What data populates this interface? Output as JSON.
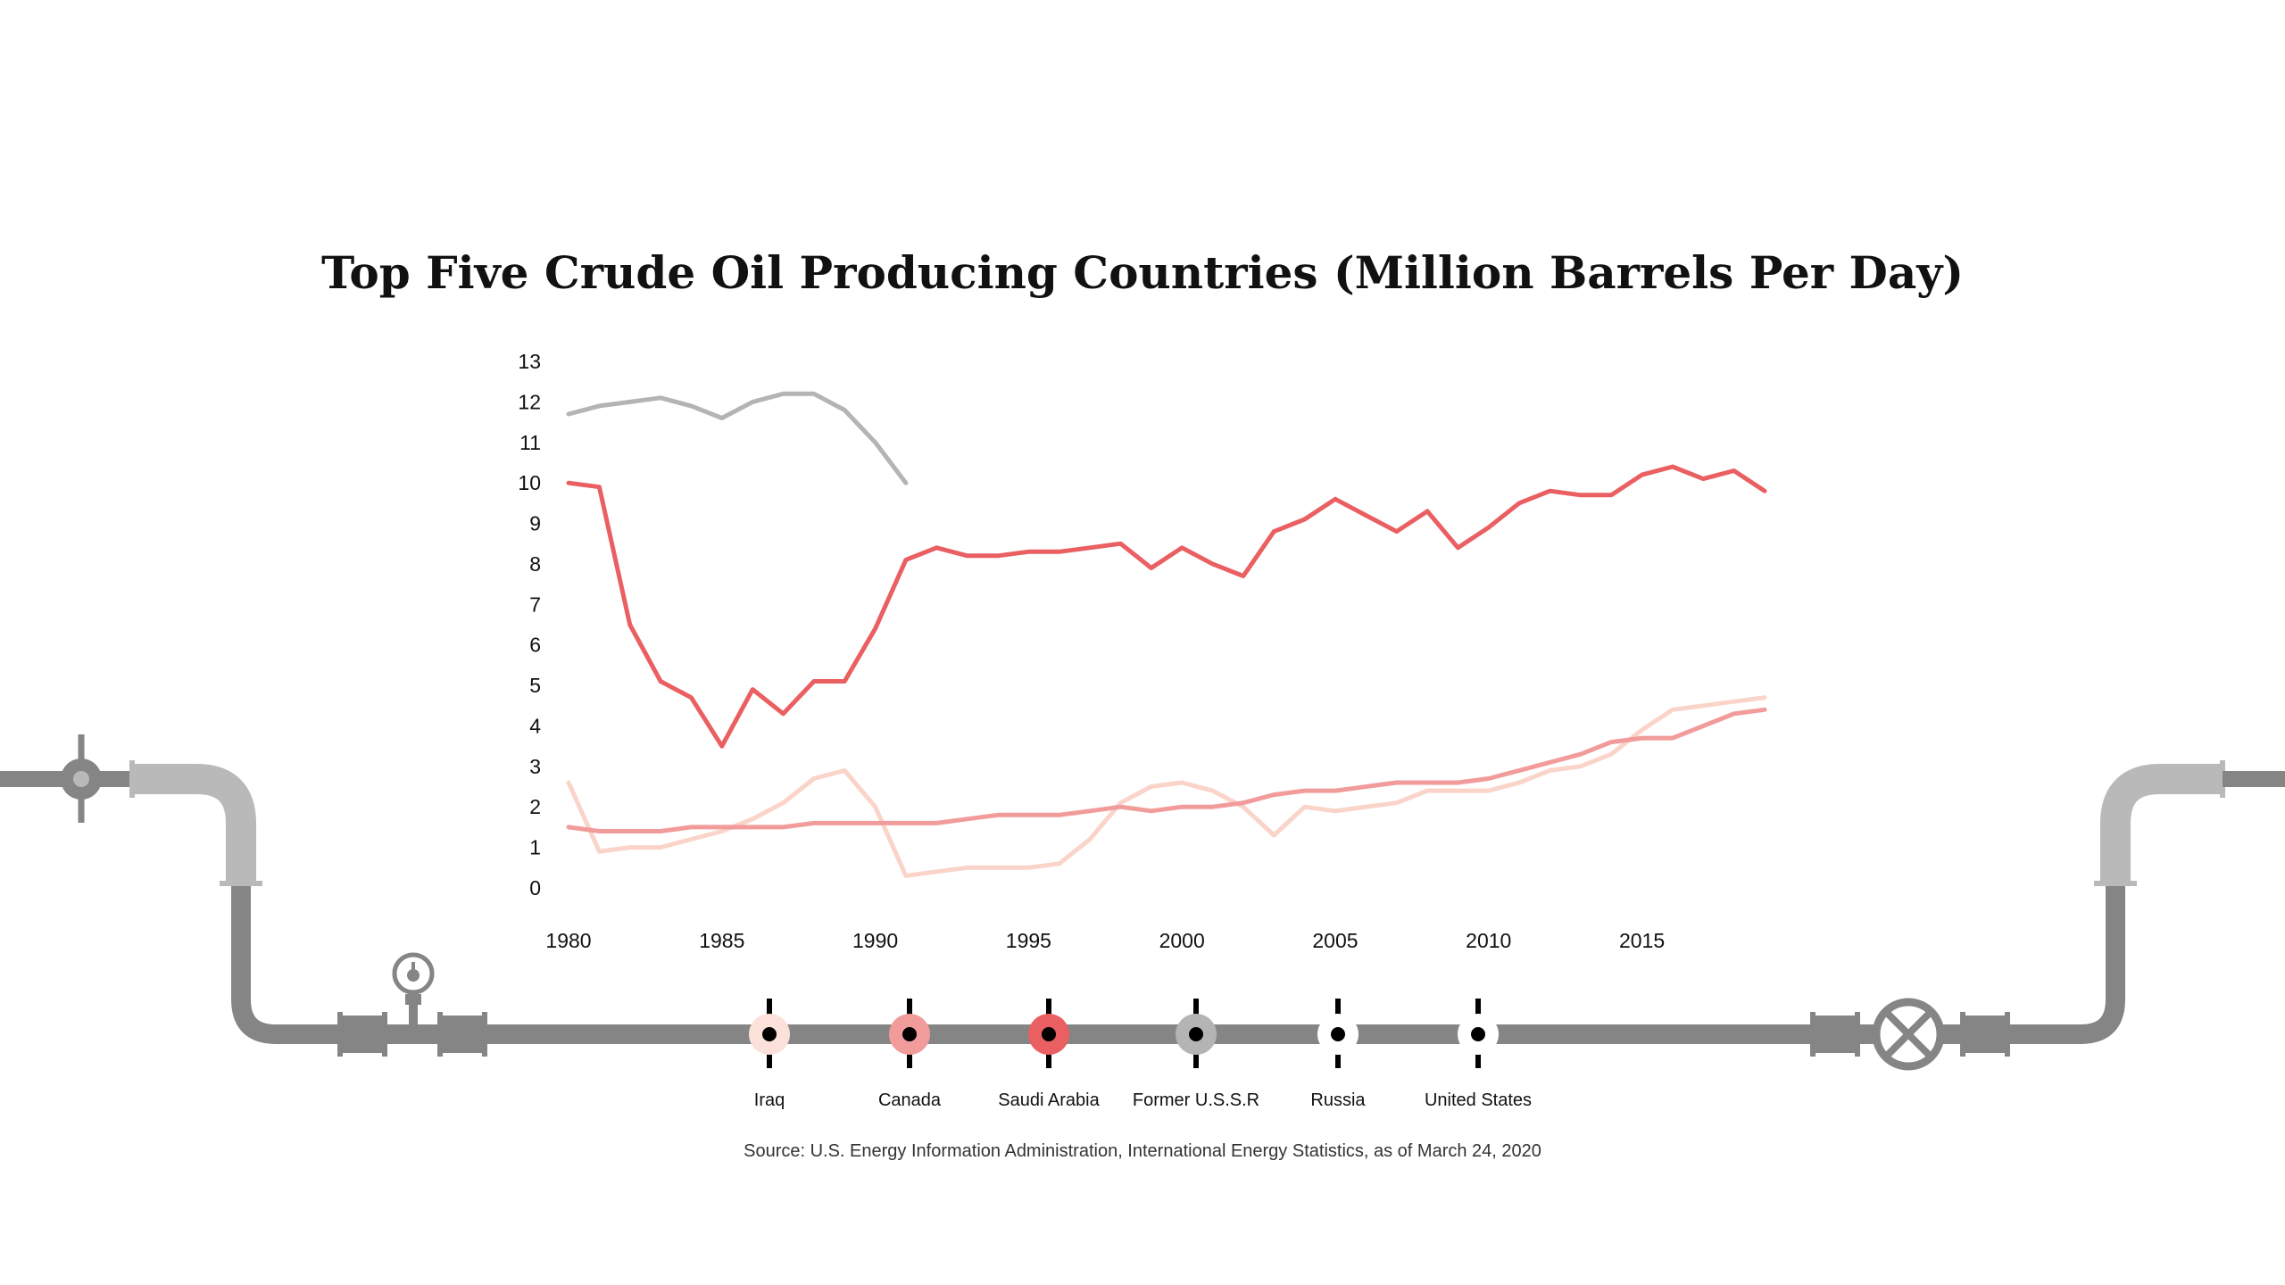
{
  "chart_data": {
    "type": "line",
    "title": "Top Five Crude Oil Producing Countries (Million Barrels Per Day)",
    "xlabel": "",
    "ylabel": "",
    "x": [
      1980,
      1981,
      1982,
      1983,
      1984,
      1985,
      1986,
      1987,
      1988,
      1989,
      1990,
      1991,
      1992,
      1993,
      1994,
      1995,
      1996,
      1997,
      1998,
      1999,
      2000,
      2001,
      2002,
      2003,
      2004,
      2005,
      2006,
      2007,
      2008,
      2009,
      2010,
      2011,
      2012,
      2013,
      2014,
      2015,
      2016,
      2017,
      2018,
      2019
    ],
    "xlim": [
      1980,
      2019
    ],
    "ylim": [
      0,
      13
    ],
    "x_ticks": [
      1980,
      1985,
      1990,
      1995,
      2000,
      2005,
      2010,
      2015
    ],
    "y_ticks": [
      0,
      1,
      2,
      3,
      4,
      5,
      6,
      7,
      8,
      9,
      10,
      11,
      12,
      13
    ],
    "grid": false,
    "legend_position": "bottom",
    "series": [
      {
        "name": "Former U.S.S.R",
        "color": "#b4b4b4",
        "values": [
          11.7,
          11.9,
          12.0,
          12.1,
          11.9,
          11.6,
          12.0,
          12.2,
          12.2,
          11.8,
          11.0,
          10.0,
          null,
          null,
          null,
          null,
          null,
          null,
          null,
          null,
          null,
          null,
          null,
          null,
          null,
          null,
          null,
          null,
          null,
          null,
          null,
          null,
          null,
          null,
          null,
          null,
          null,
          null,
          null,
          null
        ]
      },
      {
        "name": "Saudi Arabia",
        "color": "#ea5f62",
        "values": [
          10.0,
          9.9,
          6.5,
          5.1,
          4.7,
          3.5,
          4.9,
          4.3,
          5.1,
          5.1,
          6.4,
          8.1,
          8.4,
          8.2,
          8.2,
          8.3,
          8.3,
          8.4,
          8.5,
          7.9,
          8.4,
          8.0,
          7.7,
          8.8,
          9.1,
          9.6,
          9.2,
          8.8,
          9.3,
          8.4,
          8.9,
          9.5,
          9.8,
          9.7,
          9.7,
          10.2,
          10.4,
          10.1,
          10.3,
          9.8
        ]
      },
      {
        "name": "Canada",
        "color": "#f29b9b",
        "values": [
          1.5,
          1.4,
          1.4,
          1.4,
          1.5,
          1.5,
          1.5,
          1.5,
          1.6,
          1.6,
          1.6,
          1.6,
          1.6,
          1.7,
          1.8,
          1.8,
          1.8,
          1.9,
          2.0,
          1.9,
          2.0,
          2.0,
          2.1,
          2.3,
          2.4,
          2.4,
          2.5,
          2.6,
          2.6,
          2.6,
          2.7,
          2.9,
          3.1,
          3.3,
          3.6,
          3.7,
          3.7,
          4.0,
          4.3,
          4.4
        ]
      },
      {
        "name": "Iraq",
        "color": "#fad4c9",
        "values": [
          2.6,
          0.9,
          1.0,
          1.0,
          1.2,
          1.4,
          1.7,
          2.1,
          2.7,
          2.9,
          2.0,
          0.3,
          0.4,
          0.5,
          0.5,
          0.5,
          0.6,
          1.2,
          2.1,
          2.5,
          2.6,
          2.4,
          2.0,
          1.3,
          2.0,
          1.9,
          2.0,
          2.1,
          2.4,
          2.4,
          2.4,
          2.6,
          2.9,
          3.0,
          3.3,
          3.9,
          4.4,
          4.5,
          4.6,
          4.7
        ]
      }
    ]
  },
  "legend": [
    {
      "label": "Iraq",
      "color": "#fbe1d9"
    },
    {
      "label": "Canada",
      "color": "#f29b9b"
    },
    {
      "label": "Saudi Arabia",
      "color": "#ea5f62"
    },
    {
      "label": "Former U.S.S.R",
      "color": "#b4b4b4"
    },
    {
      "label": "Russia",
      "color": "#ffffff"
    },
    {
      "label": "United States",
      "color": "#ffffff"
    }
  ],
  "source": "Source: U.S. Energy Information Administration, International Energy Statistics, as of March 24, 2020",
  "colors": {
    "pipe_dark": "#858585",
    "pipe_light": "#b9b9b9",
    "text": "#111111"
  },
  "icons": {
    "left_valve": "pipe-valve-icon",
    "pressure_gauge": "pressure-gauge-icon",
    "wheel_valve": "wheel-valve-icon"
  }
}
